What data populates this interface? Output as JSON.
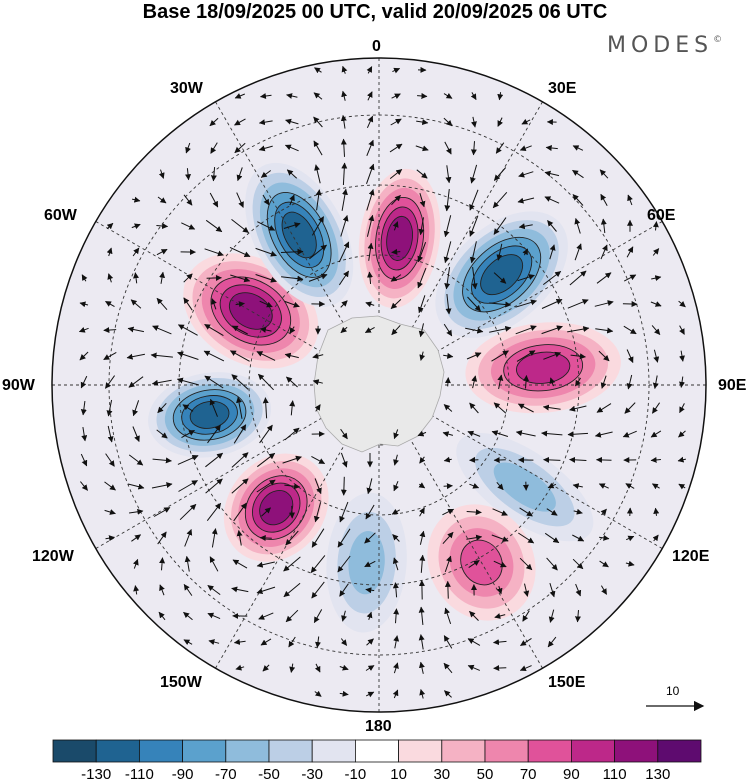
{
  "title": "Base 18/09/2025 00 UTC, valid 20/09/2025 06 UTC",
  "brand": {
    "name": "MODES",
    "mark": "©"
  },
  "longitude_labels": {
    "top": "0",
    "top_right": "30E",
    "right_upper": "60E",
    "right": "90E",
    "right_lower": "120E",
    "bottom_right": "150E",
    "bottom": "180",
    "bottom_left": "150W",
    "left_lower": "120W",
    "left": "90W",
    "left_upper": "60W",
    "top_left": "30W"
  },
  "reference_vector": {
    "label": "10"
  },
  "colorbar": {
    "tick_labels": [
      "-130",
      "-110",
      "-90",
      "-70",
      "-50",
      "-30",
      "-10",
      "10",
      "30",
      "50",
      "70",
      "90",
      "110",
      "130"
    ],
    "colors": [
      "#1a4a6a",
      "#1f6391",
      "#3683ba",
      "#5ba1cd",
      "#8fbcdc",
      "#bccfe6",
      "#e2e4f0",
      "#ffffff",
      "#fadadf",
      "#f5b2c4",
      "#ee86ad",
      "#e0529a",
      "#bd2889",
      "#8e117a",
      "#5e0b6f"
    ]
  },
  "anomaly_centers": [
    {
      "name": "positive-anomaly-60W",
      "sign": "positive",
      "peak": 130,
      "lon": -60
    },
    {
      "name": "negative-anomaly-30W",
      "sign": "negative",
      "peak": -130,
      "lon": -28
    },
    {
      "name": "positive-anomaly-10E",
      "sign": "positive",
      "peak": 130,
      "lon": 8
    },
    {
      "name": "negative-anomaly-50E",
      "sign": "negative",
      "peak": -130,
      "lon": 48
    },
    {
      "name": "positive-anomaly-85E",
      "sign": "positive",
      "peak": 110,
      "lon": 84
    },
    {
      "name": "negative-anomaly-125E",
      "sign": "negative",
      "peak": -70,
      "lon": 125
    },
    {
      "name": "positive-anomaly-150E",
      "sign": "positive",
      "peak": 90,
      "lon": 150
    },
    {
      "name": "negative-anomaly-175W",
      "sign": "negative",
      "peak": -70,
      "lon": -176
    },
    {
      "name": "positive-anomaly-140W",
      "sign": "positive",
      "peak": 130,
      "lon": -140
    },
    {
      "name": "negative-anomaly-100W",
      "sign": "negative",
      "peak": -130,
      "lon": -100
    }
  ]
}
